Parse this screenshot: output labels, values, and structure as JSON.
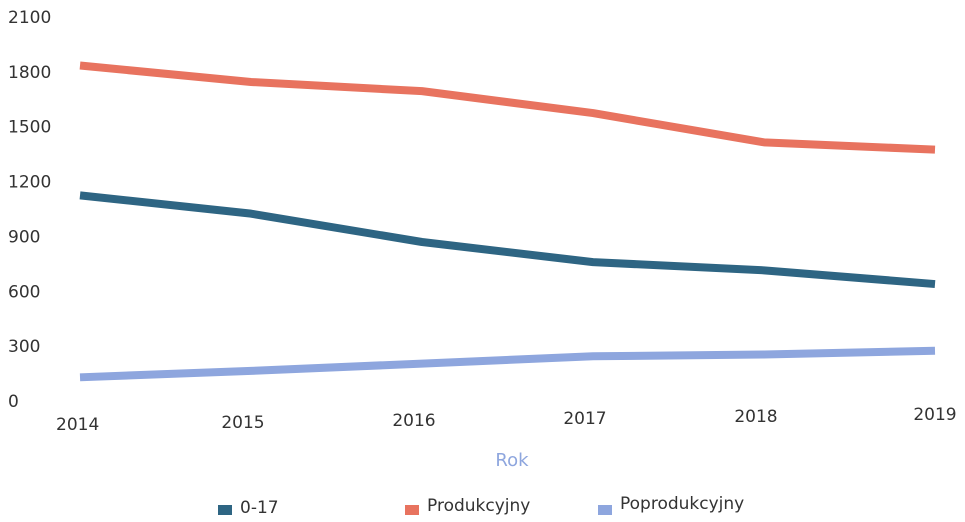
{
  "chart_data": {
    "type": "line",
    "x_label": "Rok",
    "categories": [
      "2014",
      "2015",
      "2016",
      "2017",
      "2018",
      "2019"
    ],
    "series": [
      {
        "name": "0-17",
        "color": "#2e6583",
        "values": [
          1130,
          1030,
          875,
          765,
          720,
          645
        ]
      },
      {
        "name": "Produkcyjny",
        "color": "#e8735f",
        "values": [
          1840,
          1750,
          1700,
          1580,
          1420,
          1380
        ]
      },
      {
        "name": "Poprodukcyjny",
        "color": "#8ea6de",
        "values": [
          135,
          170,
          210,
          250,
          260,
          280
        ]
      }
    ],
    "ylim": [
      0,
      2100
    ],
    "yticks": [
      0,
      300,
      600,
      900,
      1200,
      1500,
      1800,
      2100
    ],
    "grid": false,
    "legend": "bottom"
  }
}
